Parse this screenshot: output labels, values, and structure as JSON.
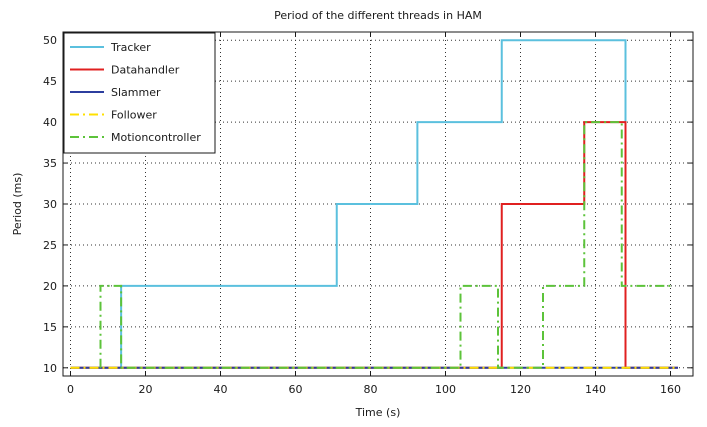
{
  "chart_data": {
    "type": "line",
    "title": "Period of the different threads in HAM",
    "xlabel": "Time (s)",
    "ylabel": "Period (ms)",
    "xlim": [
      -2,
      166
    ],
    "ylim": [
      9,
      51
    ],
    "xticks": [
      0,
      20,
      40,
      60,
      80,
      100,
      120,
      140,
      160
    ],
    "yticks": [
      10,
      15,
      20,
      25,
      30,
      35,
      40,
      45,
      50
    ],
    "grid": true,
    "grid_style": "dotted",
    "legend_position": "top-left",
    "step": true,
    "series": [
      {
        "name": "Tracker",
        "color": "#5bc0de",
        "style": "solid",
        "x": [
          13.5,
          13.5,
          71,
          71,
          92.5,
          92.5,
          115,
          115,
          148,
          148
        ],
        "y": [
          10,
          20,
          20,
          30,
          30,
          40,
          40,
          50,
          50,
          10
        ]
      },
      {
        "name": "Datahandler",
        "color": "#e02020",
        "style": "solid",
        "x": [
          0,
          115,
          115,
          137,
          137,
          148,
          148,
          162
        ],
        "y": [
          10,
          10,
          30,
          30,
          40,
          40,
          10,
          10
        ]
      },
      {
        "name": "Slammer",
        "color": "#2c3e9e",
        "style": "solid",
        "x": [
          0,
          162
        ],
        "y": [
          10,
          10
        ]
      },
      {
        "name": "Follower",
        "color": "#ffe000",
        "style": "dashdot",
        "x": [
          0,
          162
        ],
        "y": [
          10,
          10
        ]
      },
      {
        "name": "Motioncontroller",
        "color": "#5cc33a",
        "style": "dashdot",
        "x": [
          8,
          8,
          13.5,
          13.5,
          104,
          104,
          114,
          114,
          126,
          126,
          137,
          137,
          147,
          147,
          160
        ],
        "y": [
          10,
          20,
          20,
          10,
          10,
          20,
          20,
          10,
          10,
          20,
          20,
          40,
          40,
          20,
          20
        ]
      }
    ]
  }
}
